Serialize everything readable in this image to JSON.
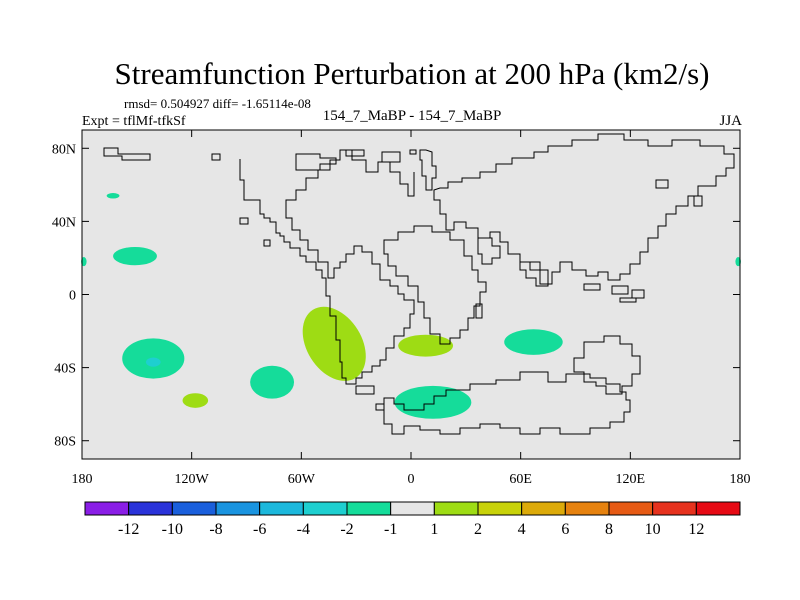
{
  "chart_data": {
    "type": "heatmap",
    "title": "Streamfunction Perturbation at 200 hPa (km2/s)",
    "stats_label": "rmsd= 0.504927 diff= -1.65114e-08",
    "experiment_label": "Expt = tflMf-tfkSf",
    "subtitle": "154_7_MaBP - 154_7_MaBP",
    "season": "JJA",
    "x_tick_labels": [
      "180",
      "120W",
      "60W",
      "0",
      "60E",
      "120E",
      "180"
    ],
    "x_ticks": [
      -180,
      -120,
      -60,
      0,
      60,
      120,
      180
    ],
    "y_tick_labels": [
      "80N",
      "40N",
      "0",
      "40S",
      "80S"
    ],
    "y_ticks": [
      80,
      40,
      0,
      -40,
      -80
    ],
    "xlim": [
      -180,
      180
    ],
    "ylim": [
      -90,
      90
    ],
    "colorbar": {
      "labels": [
        "-12",
        "-10",
        "-8",
        "-6",
        "-4",
        "-2",
        "-1",
        "1",
        "2",
        "4",
        "6",
        "8",
        "10",
        "12"
      ],
      "colors": [
        "#8a1ee6",
        "#2a33d9",
        "#1a5fdc",
        "#1a94e0",
        "#1cb8dc",
        "#1ecfd0",
        "#15dc9a",
        "#e6e6e6",
        "#9edc14",
        "#c8d20a",
        "#dcaa0a",
        "#e6820f",
        "#e65a14",
        "#e6321e",
        "#e60a14"
      ]
    },
    "anomaly_regions": [
      {
        "name": "blob-nw-pacific",
        "lon": -163,
        "lat": 54,
        "rlon": 3.5,
        "rlat": 1.5,
        "value": -1.5
      },
      {
        "name": "blob-hawaii",
        "lon": -151,
        "lat": 21,
        "rlon": 12,
        "rlat": 5,
        "value": -1.5
      },
      {
        "name": "blob-edge-west",
        "lon": -179,
        "lat": 18,
        "rlon": 1.5,
        "rlat": 2.5,
        "value": -1.5
      },
      {
        "name": "blob-edge-east",
        "lon": 179,
        "lat": 18,
        "rlon": 1.5,
        "rlat": 2.5,
        "value": -1.5
      },
      {
        "name": "blob-south-pacific",
        "lon": -141,
        "lat": -35,
        "rlon": 17,
        "rlat": 11,
        "value": -1.5
      },
      {
        "name": "blob-south-pacific-core",
        "lon": -141,
        "lat": -37,
        "rlon": 4,
        "rlat": 2.5,
        "value": -2.5
      },
      {
        "name": "blob-east-pacific",
        "lon": -76,
        "lat": -48,
        "rlon": 12,
        "rlat": 9,
        "value": -1.5
      },
      {
        "name": "blob-small-south",
        "lon": -118,
        "lat": -58,
        "rlon": 7,
        "rlat": 4,
        "value": 1.5
      },
      {
        "name": "blob-south-atlantic",
        "lon": -42,
        "lat": -27,
        "rlon": 15,
        "rlat": 22,
        "rotate": -32,
        "value": 1.5
      },
      {
        "name": "blob-southeast-atlantic",
        "lon": 8,
        "lat": -28,
        "rlon": 15,
        "rlat": 6,
        "value": 1.5
      },
      {
        "name": "blob-indian-ocean",
        "lon": 67,
        "lat": -26,
        "rlon": 16,
        "rlat": 7,
        "value": -1.5
      },
      {
        "name": "blob-southern-ocean",
        "lon": 12,
        "lat": -59,
        "rlon": 21,
        "rlat": 9,
        "value": -1.5
      }
    ]
  }
}
